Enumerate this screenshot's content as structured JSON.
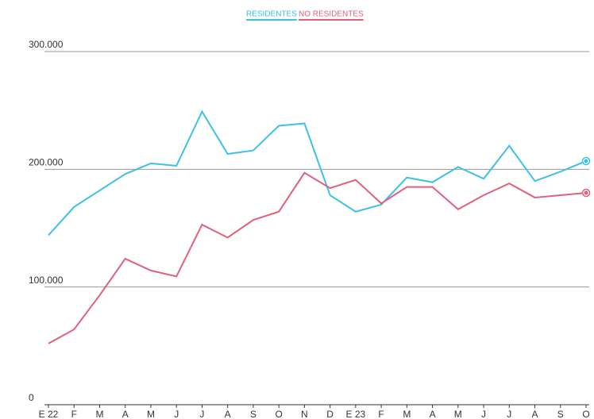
{
  "chart_data": {
    "type": "line",
    "categories": [
      "E 22",
      "F",
      "M",
      "A",
      "M",
      "J",
      "J",
      "A",
      "S",
      "O",
      "N",
      "D",
      "E 23",
      "F",
      "M",
      "A",
      "M",
      "J",
      "J",
      "A",
      "S",
      "O"
    ],
    "series": [
      {
        "name": "RESIDENTES",
        "color": "#3ec1e6",
        "values": [
          144000,
          168000,
          182000,
          196000,
          205000,
          203000,
          249000,
          213000,
          216000,
          237000,
          239000,
          178000,
          164000,
          170000,
          193000,
          189000,
          202000,
          192000,
          220000,
          190000,
          198000,
          207000
        ]
      },
      {
        "name": "NO RESIDENTES",
        "color": "#e0607e",
        "values": [
          52000,
          64000,
          93000,
          124000,
          114000,
          109000,
          153000,
          142000,
          157000,
          164000,
          197000,
          184000,
          191000,
          171000,
          185000,
          185000,
          166000,
          178000,
          188000,
          176000,
          178000,
          180000
        ]
      }
    ],
    "ylim": [
      0,
      300000
    ],
    "yticks": [
      0,
      {
        "value": 100000,
        "label": "100.000"
      },
      {
        "value": 200000,
        "label": "200.000"
      },
      {
        "value": 300000,
        "label": "300.000"
      }
    ],
    "grid": true,
    "legend": "top"
  }
}
